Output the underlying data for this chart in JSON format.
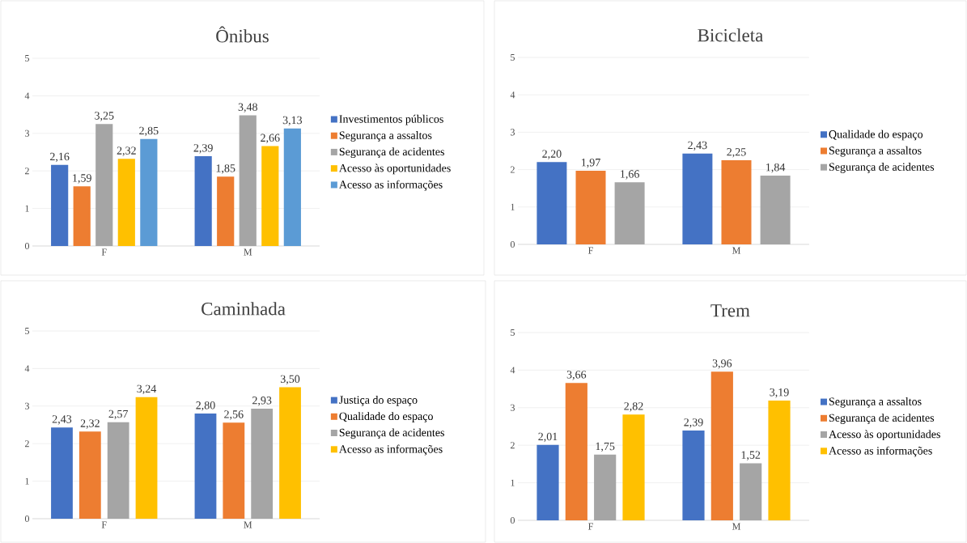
{
  "chart_data": [
    {
      "type": "bar",
      "title": "Ônibus",
      "categories": [
        "F",
        "M"
      ],
      "series": [
        {
          "name": "Investimentos públicos",
          "color": "#4472c4",
          "values": [
            2.16,
            2.39
          ],
          "value_labels": [
            "2,16",
            "2,39"
          ]
        },
        {
          "name": "Segurança a assaltos",
          "color": "#ed7d31",
          "values": [
            1.59,
            1.85
          ],
          "value_labels": [
            "1,59",
            "1,85"
          ]
        },
        {
          "name": "Segurança de acidentes",
          "color": "#a5a5a5",
          "values": [
            3.25,
            3.48
          ],
          "value_labels": [
            "3,25",
            "3,48"
          ]
        },
        {
          "name": "Acesso às oportunidades",
          "color": "#ffc000",
          "values": [
            2.32,
            2.66
          ],
          "value_labels": [
            "2,32",
            "2,66"
          ]
        },
        {
          "name": "Acesso as informações",
          "color": "#5b9bd5",
          "values": [
            2.85,
            3.13
          ],
          "value_labels": [
            "2,85",
            "3,13"
          ]
        }
      ],
      "ylim": [
        0,
        5
      ],
      "yticks": [
        0,
        1,
        2,
        3,
        4,
        5
      ],
      "grid": "y",
      "legend": "right"
    },
    {
      "type": "bar",
      "title": "Bicicleta",
      "categories": [
        "F",
        "M"
      ],
      "series": [
        {
          "name": "Qualidade do espaço",
          "color": "#4472c4",
          "values": [
            2.2,
            2.43
          ],
          "value_labels": [
            "2,20",
            "2,43"
          ]
        },
        {
          "name": "Segurança a assaltos",
          "color": "#ed7d31",
          "values": [
            1.97,
            2.25
          ],
          "value_labels": [
            "1,97",
            "2,25"
          ]
        },
        {
          "name": "Segurança de acidentes",
          "color": "#a5a5a5",
          "values": [
            1.66,
            1.84
          ],
          "value_labels": [
            "1,66",
            "1,84"
          ]
        }
      ],
      "ylim": [
        0,
        5
      ],
      "yticks": [
        0,
        1,
        2,
        3,
        4,
        5
      ],
      "grid": "y",
      "legend": "right"
    },
    {
      "type": "bar",
      "title": "Caminhada",
      "categories": [
        "F",
        "M"
      ],
      "series": [
        {
          "name": "Justiça do espaço",
          "color": "#4472c4",
          "values": [
            2.43,
            2.8
          ],
          "value_labels": [
            "2,43",
            "2,80"
          ]
        },
        {
          "name": "Qualidade do espaço",
          "color": "#ed7d31",
          "values": [
            2.32,
            2.56
          ],
          "value_labels": [
            "2,32",
            "2,56"
          ]
        },
        {
          "name": "Segurança de acidentes",
          "color": "#a5a5a5",
          "values": [
            2.57,
            2.93
          ],
          "value_labels": [
            "2,57",
            "2,93"
          ]
        },
        {
          "name": "Acesso as informações",
          "color": "#ffc000",
          "values": [
            3.24,
            3.5
          ],
          "value_labels": [
            "3,24",
            "3,50"
          ]
        }
      ],
      "ylim": [
        0,
        5
      ],
      "yticks": [
        0,
        1,
        2,
        3,
        4,
        5
      ],
      "grid": "y",
      "legend": "right"
    },
    {
      "type": "bar",
      "title": "Trem",
      "categories": [
        "F",
        "M"
      ],
      "series": [
        {
          "name": "Segurança a assaltos",
          "color": "#4472c4",
          "values": [
            2.01,
            2.39
          ],
          "value_labels": [
            "2,01",
            "2,39"
          ]
        },
        {
          "name": "Segurança de acidentes",
          "color": "#ed7d31",
          "values": [
            3.66,
            3.96
          ],
          "value_labels": [
            "3,66",
            "3,96"
          ]
        },
        {
          "name": "Acesso às oportunidades",
          "color": "#a5a5a5",
          "values": [
            1.75,
            1.52
          ],
          "value_labels": [
            "1,75",
            "1,52"
          ]
        },
        {
          "name": "Acesso as informações",
          "color": "#ffc000",
          "values": [
            2.82,
            3.19
          ],
          "value_labels": [
            "2,82",
            "3,19"
          ]
        }
      ],
      "ylim": [
        0,
        5
      ],
      "yticks": [
        0,
        1,
        2,
        3,
        4,
        5
      ],
      "grid": "y",
      "legend": "right"
    }
  ]
}
